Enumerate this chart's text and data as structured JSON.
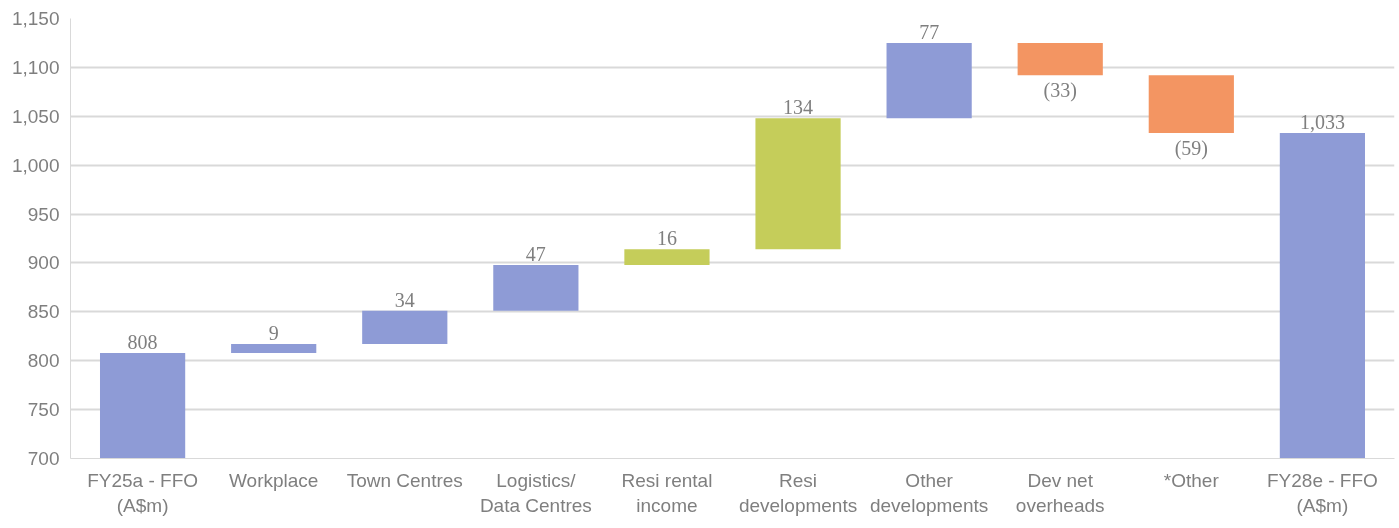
{
  "chart_data": {
    "type": "bar",
    "categories": [
      "FY25a - FFO (A$m)",
      "Workplace",
      "Town Centres",
      "Logistics/ Data Centres",
      "Resi rental income",
      "Resi developments",
      "Other developments",
      "Dev net overheads",
      "*Other",
      "FY28e - FFO (A$m)"
    ],
    "values": [
      808,
      9,
      34,
      47,
      16,
      134,
      77,
      -33,
      -59,
      1033
    ],
    "base": [
      null,
      808,
      817,
      851,
      898,
      914,
      1048,
      1125,
      1092,
      null
    ],
    "colors": [
      "#8e9bd6",
      "#8e9bd6",
      "#8e9bd6",
      "#8e9bd6",
      "#c5cd5a",
      "#c5cd5a",
      "#8e9bd6",
      "#f39562",
      "#f39562",
      "#8e9bd6"
    ],
    "value_labels": [
      "808",
      "9",
      "34",
      "47",
      "16",
      "134",
      "77",
      "(33)",
      "(59)",
      "1,033"
    ],
    "ylim": [
      700,
      1150
    ],
    "yticks": [
      {
        "value": 700,
        "label": "700"
      },
      {
        "value": 750,
        "label": "750"
      },
      {
        "value": 800,
        "label": "800"
      },
      {
        "value": 850,
        "label": "850"
      },
      {
        "value": 900,
        "label": "900"
      },
      {
        "value": 950,
        "label": "950"
      },
      {
        "value": 1000,
        "label": "1,000"
      },
      {
        "value": 1050,
        "label": "1,050"
      },
      {
        "value": 1100,
        "label": "1,100"
      },
      {
        "value": 1150,
        "label": "1,150"
      }
    ],
    "grid": "y"
  }
}
